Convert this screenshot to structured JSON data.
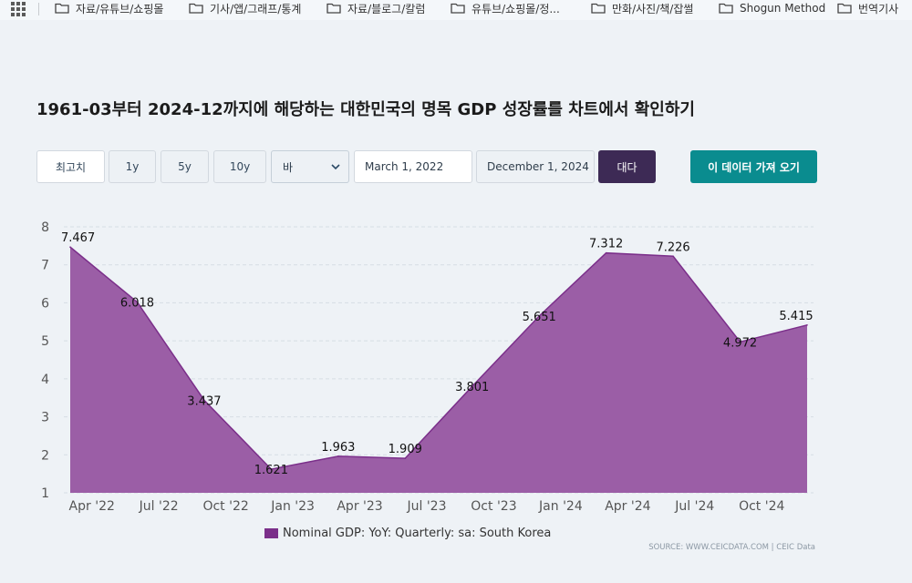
{
  "bookmarks": [
    "자료/유튜브/쇼핑몰",
    "기사/앱/그래프/통계",
    "자료/블로그/칼럼",
    "유튜브/쇼핑몰/정...",
    "만화/사진/책/잡썰",
    "Shogun Method",
    "번역기사"
  ],
  "page": {
    "title": "1961-03부터 2024-12까지에 해당하는 대한민국의 명목 GDP 성장률를 차트에서 확인하기"
  },
  "controls": {
    "max_label": "최고치",
    "y1_label": "1y",
    "y5_label": "5y",
    "y10_label": "10y",
    "chart_type_value": "바",
    "start_date": "March 1, 2022",
    "end_date": "December 1, 2024",
    "apply_label": "대다",
    "fetch_label": "이 데이터 가져 오기"
  },
  "colors": {
    "area_fill": "#9b5ea6",
    "area_line": "#7b2f8a",
    "legend_swatch": "#7b2f8a",
    "apply_button": "#3d2a55",
    "fetch_button": "#0a8c8f"
  },
  "chart_data": {
    "type": "area",
    "title": "",
    "xlabel": "",
    "ylabel": "",
    "x": [
      "2022-03",
      "2022-06",
      "2022-09",
      "2022-12",
      "2023-03",
      "2023-06",
      "2023-09",
      "2023-12",
      "2024-03",
      "2024-06",
      "2024-09",
      "2024-12"
    ],
    "x_tick_labels": [
      "Apr '22",
      "Jul '22",
      "Oct '22",
      "Jan '23",
      "Apr '23",
      "Jul '23",
      "Oct '23",
      "Jan '24",
      "Apr '24",
      "Jul '24",
      "Oct '24"
    ],
    "y_ticks": [
      "1",
      "2",
      "3",
      "4",
      "5",
      "6",
      "7",
      "8"
    ],
    "ylim": [
      1,
      8
    ],
    "grid": true,
    "series": [
      {
        "name": "Nominal GDP: YoY: Quarterly: sa: South Korea",
        "values": [
          7.467,
          6.018,
          3.437,
          1.621,
          1.963,
          1.909,
          3.801,
          5.651,
          7.312,
          7.226,
          4.972,
          5.415
        ],
        "data_labels": [
          "7.467",
          "6.018",
          "3.437",
          "1.621",
          "1.963",
          "1.909",
          "3.801",
          "5.651",
          "7.312",
          "7.226",
          "4.972",
          "5.415"
        ]
      }
    ],
    "legend": "bottom-center",
    "source": "SOURCE: WWW.CEICDATA.COM | CEIC Data"
  }
}
